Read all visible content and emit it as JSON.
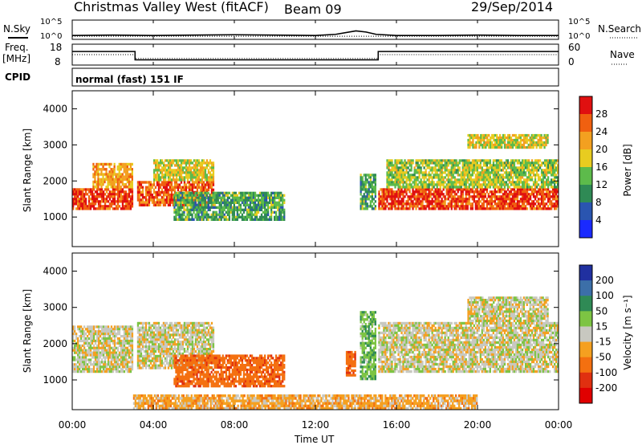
{
  "header": {
    "station": "Christmas Valley West (fitACF)",
    "beam": "Beam 09",
    "date": "29/Sep/2014"
  },
  "labels": {
    "nsky": "N.Sky",
    "nsearch": "N.Search",
    "freq_top": "Freq.",
    "freq_unit": "[MHz]",
    "nave": "Nave",
    "cpid": "CPID",
    "cpid_value": "normal (fast) 151 IF",
    "ylabel_power": "Slant Range [km]",
    "ylabel_velocity": "Slant Range [km]",
    "xlabel": "Time UT",
    "cbar_power": "Power [dB]",
    "cbar_velocity": "Velocity [m s⁻¹]",
    "noise_left_top": "10^5",
    "noise_left_bot": "10^0",
    "noise_right_top": "10^5",
    "noise_right_bot": "10^0",
    "freq_left_top": "18",
    "freq_left_bot": "8",
    "nave_right_top": "60",
    "nave_right_bot": "0"
  },
  "chart_data": [
    {
      "type": "line",
      "title": "N.Sky / N.Search",
      "x_ticks": [
        "00:00",
        "04:00",
        "08:00",
        "12:00",
        "16:00",
        "20:00",
        "00:00"
      ],
      "ylim_log": [
        0,
        5
      ],
      "series": [
        {
          "name": "N.Sky",
          "style": "solid",
          "x_hours": [
            0,
            2,
            4,
            6,
            8,
            10,
            12,
            13,
            14,
            14.5,
            15,
            16,
            18,
            20,
            22,
            24
          ],
          "y_log": [
            1.0,
            1.1,
            1.0,
            1.1,
            1.2,
            1.1,
            1.0,
            1.3,
            2.2,
            1.9,
            1.3,
            1.0,
            1.0,
            1.1,
            1.0,
            1.0
          ]
        },
        {
          "name": "N.Search",
          "style": "dotted",
          "x_hours": [
            0,
            24
          ],
          "y_log": [
            0.8,
            0.8
          ]
        }
      ]
    },
    {
      "type": "line",
      "title": "Freq. / Nave",
      "x_ticks": [
        "00:00",
        "04:00",
        "08:00",
        "12:00",
        "16:00",
        "20:00",
        "00:00"
      ],
      "freq_ylim": [
        8,
        18
      ],
      "nave_ylim": [
        0,
        60
      ],
      "series": [
        {
          "name": "Freq.",
          "style": "solid",
          "x_hours": [
            0,
            3.1,
            3.1,
            15.1,
            15.1,
            24
          ],
          "y": [
            14.5,
            14.5,
            10.5,
            10.5,
            14.5,
            14.5
          ]
        },
        {
          "name": "Nave",
          "style": "dotted",
          "x_hours": [
            0,
            3.1,
            3.1,
            15.1,
            15.1,
            24
          ],
          "y": [
            30,
            30,
            19,
            19,
            30,
            30
          ]
        }
      ]
    },
    {
      "type": "heatmap",
      "title": "Power [dB]",
      "x_ticks": [
        "00:00",
        "04:00",
        "08:00",
        "12:00",
        "16:00",
        "20:00",
        "00:00"
      ],
      "ylim": [
        180,
        4500
      ],
      "y_ticks": [
        1000,
        2000,
        3000,
        4000
      ],
      "colorbar_ticks": [
        4,
        8,
        12,
        16,
        20,
        24,
        28
      ],
      "colorbar_colors": [
        "#1a2aff",
        "#2a55b0",
        "#2f8a55",
        "#5dbb4b",
        "#e8cc20",
        "#f3a020",
        "#f06010",
        "#e01010"
      ],
      "regions": [
        {
          "x_hours": [
            0.0,
            3.0
          ],
          "range_km": [
            1200,
            1800
          ],
          "db": 28
        },
        {
          "x_hours": [
            1.0,
            3.0
          ],
          "range_km": [
            1800,
            2500
          ],
          "db": 22
        },
        {
          "x_hours": [
            3.2,
            7.0
          ],
          "range_km": [
            1300,
            2000
          ],
          "db": 26
        },
        {
          "x_hours": [
            4.0,
            7.0
          ],
          "range_km": [
            2000,
            2600
          ],
          "db": 18
        },
        {
          "x_hours": [
            5.0,
            10.5
          ],
          "range_km": [
            900,
            1700
          ],
          "db": 12
        },
        {
          "x_hours": [
            14.2,
            15.0
          ],
          "range_km": [
            1200,
            2200
          ],
          "db": 12
        },
        {
          "x_hours": [
            15.1,
            24.0
          ],
          "range_km": [
            1200,
            1800
          ],
          "db": 28
        },
        {
          "x_hours": [
            15.5,
            24.0
          ],
          "range_km": [
            1800,
            2600
          ],
          "db": 16
        },
        {
          "x_hours": [
            19.5,
            23.5
          ],
          "range_km": [
            2900,
            3300
          ],
          "db": 18
        }
      ]
    },
    {
      "type": "heatmap",
      "title": "Velocity [m s⁻¹]",
      "x_ticks": [
        "00:00",
        "04:00",
        "08:00",
        "12:00",
        "16:00",
        "20:00",
        "00:00"
      ],
      "ylim": [
        180,
        4500
      ],
      "y_ticks": [
        1000,
        2000,
        3000,
        4000
      ],
      "colorbar_ticks": [
        200,
        100,
        50,
        15,
        -15,
        -50,
        -100,
        -200
      ],
      "colorbar_colors": [
        "#2030a0",
        "#3c6fa8",
        "#2f8a55",
        "#7dc443",
        "#c8c8c0",
        "#f5a020",
        "#f47010",
        "#e03010",
        "#e00000"
      ],
      "regions": [
        {
          "x_hours": [
            0.0,
            3.0
          ],
          "range_km": [
            1200,
            2500
          ],
          "ms": 0
        },
        {
          "x_hours": [
            3.2,
            7.0
          ],
          "range_km": [
            1300,
            2600
          ],
          "ms": 0
        },
        {
          "x_hours": [
            5.0,
            10.5
          ],
          "range_km": [
            800,
            1700
          ],
          "ms": -80
        },
        {
          "x_hours": [
            13.5,
            14.0
          ],
          "range_km": [
            1100,
            1800
          ],
          "ms": -80
        },
        {
          "x_hours": [
            14.2,
            15.0
          ],
          "range_km": [
            1000,
            2900
          ],
          "ms": 40
        },
        {
          "x_hours": [
            15.1,
            24.0
          ],
          "range_km": [
            1200,
            2600
          ],
          "ms": 0
        },
        {
          "x_hours": [
            19.5,
            23.5
          ],
          "range_km": [
            2600,
            3300
          ],
          "ms": 0
        },
        {
          "x_hours": [
            3.0,
            20.0
          ],
          "range_km": [
            180,
            600
          ],
          "ms": -30
        }
      ]
    }
  ]
}
